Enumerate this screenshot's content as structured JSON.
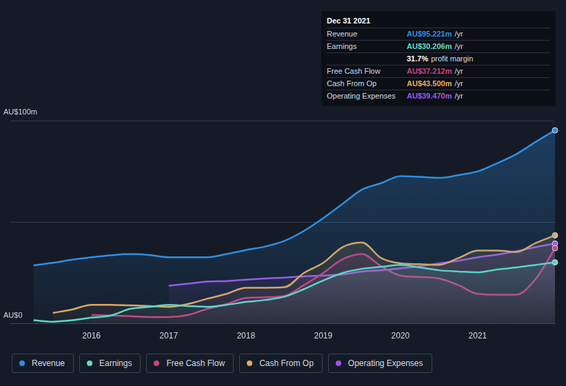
{
  "chart_data": {
    "type": "line",
    "x": [
      2015.25,
      2015.5,
      2015.75,
      2016.0,
      2016.25,
      2016.5,
      2016.75,
      2017.0,
      2017.25,
      2017.5,
      2017.75,
      2018.0,
      2018.25,
      2018.5,
      2018.75,
      2019.0,
      2019.25,
      2019.5,
      2019.75,
      2020.0,
      2020.25,
      2020.5,
      2020.75,
      2021.0,
      2021.25,
      2021.5,
      2021.75,
      2022.0
    ],
    "xlim": [
      2014.95,
      2022.0
    ],
    "xticks": [
      2016,
      2017,
      2018,
      2019,
      2020,
      2021
    ],
    "ylim": [
      0,
      100
    ],
    "yticks": [
      {
        "value": 0,
        "label": "AU$0"
      },
      {
        "value": 50,
        "label": null
      },
      {
        "value": 100,
        "label": "AU$100m"
      }
    ],
    "grid": true,
    "legend": "bottom",
    "series": [
      {
        "name": "Revenue",
        "color": "#2f8fe3",
        "values": [
          28.7,
          30,
          31.5,
          32.7,
          33.7,
          34.3,
          33.8,
          32.7,
          32.7,
          32.7,
          34.3,
          36.3,
          38,
          40.8,
          45.7,
          52,
          59,
          66,
          69.2,
          72.7,
          72.3,
          71.8,
          73.2,
          75,
          79,
          83.5,
          89.5,
          95.221
        ]
      },
      {
        "name": "Earnings",
        "color": "#5fdcc6",
        "values": [
          1.7,
          1.0,
          1.7,
          3,
          4,
          7.3,
          8.3,
          9.3,
          8.7,
          8.3,
          9.3,
          10.7,
          11.7,
          13.3,
          17,
          21.3,
          25,
          27,
          28,
          29,
          27.7,
          26.3,
          25.7,
          25.3,
          26.7,
          27.7,
          29,
          30.206
        ]
      },
      {
        "name": "Free Cash Flow",
        "color": "#cc4280",
        "values": [
          null,
          null,
          null,
          4.3,
          4,
          3.7,
          3.3,
          3.3,
          4.3,
          7.3,
          9.7,
          12.7,
          13,
          13.7,
          19,
          25,
          31.7,
          34.3,
          28.3,
          23.7,
          23,
          22.3,
          19,
          14.7,
          14.3,
          14.3,
          22,
          37.212
        ]
      },
      {
        "name": "Cash From Op",
        "color": "#e8a95c",
        "values": [
          null,
          5.3,
          7,
          9.3,
          9.3,
          9,
          8.7,
          8.3,
          9.7,
          12.3,
          14.7,
          17.7,
          17.7,
          18,
          25,
          30,
          37.7,
          40,
          32.3,
          29.7,
          29.3,
          29,
          32.3,
          36,
          36,
          35.3,
          39.7,
          43.5
        ]
      },
      {
        "name": "Operating Expenses",
        "color": "#a055ea",
        "values": [
          null,
          null,
          null,
          null,
          null,
          null,
          null,
          18.7,
          19.7,
          20.7,
          21,
          21.7,
          22.3,
          22.7,
          23.3,
          23.7,
          24.3,
          25.7,
          26.3,
          27.3,
          28.3,
          29.7,
          31,
          32.7,
          34,
          35.7,
          37.7,
          39.47
        ]
      }
    ],
    "annotation": {
      "title": "Dec 31 2021",
      "rows": [
        {
          "label": "Revenue",
          "value": "AU$95.221m",
          "suffix": "/yr"
        },
        {
          "label": "Earnings",
          "value": "AU$30.206m",
          "suffix": "/yr"
        },
        {
          "label": null,
          "value": "31.7%",
          "suffix": "profit margin"
        },
        {
          "label": "Free Cash Flow",
          "value": "AU$37.212m",
          "suffix": "/yr"
        },
        {
          "label": "Cash From Op",
          "value": "AU$43.500m",
          "suffix": "/yr"
        },
        {
          "label": "Operating Expenses",
          "value": "AU$39.470m",
          "suffix": "/yr"
        }
      ]
    }
  }
}
